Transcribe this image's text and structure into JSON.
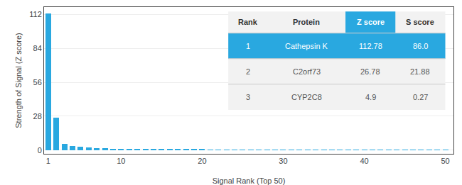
{
  "chart_data": {
    "type": "bar",
    "x": [
      1,
      2,
      3,
      4,
      5,
      6,
      7,
      8,
      9,
      10,
      11,
      12,
      13,
      14,
      15,
      16,
      17,
      18,
      19,
      20,
      21,
      22,
      23,
      24,
      25,
      26,
      27,
      28,
      29,
      30,
      31,
      32,
      33,
      34,
      35,
      36,
      37,
      38,
      39,
      40,
      41,
      42,
      43,
      44,
      45,
      46,
      47,
      48,
      49,
      50
    ],
    "values": [
      112.78,
      26.78,
      4.9,
      3.5,
      2.8,
      2.2,
      1.8,
      1.5,
      1.3,
      1.1,
      1.0,
      0.9,
      0.85,
      0.8,
      0.75,
      0.7,
      0.65,
      0.6,
      0.57,
      0.54,
      0.51,
      0.49,
      0.47,
      0.45,
      0.43,
      0.41,
      0.4,
      0.38,
      0.37,
      0.35,
      0.34,
      0.33,
      0.32,
      0.31,
      0.3,
      0.29,
      0.28,
      0.27,
      0.26,
      0.25,
      0.24,
      0.23,
      0.22,
      0.21,
      0.2,
      0.19,
      0.18,
      0.17,
      0.16,
      0.15
    ],
    "color": "#29a8e0",
    "xlabel": "Signal Rank (Top 50)",
    "ylabel": "Strength of Signal (Z score)",
    "xlim": [
      0.5,
      51
    ],
    "xticks": [
      1,
      10,
      20,
      30,
      40,
      50
    ],
    "ylim": [
      -3,
      118
    ],
    "yticks": [
      0,
      28,
      56,
      84,
      112
    ],
    "grid": true,
    "table": {
      "headers": [
        "Rank",
        "Protein",
        "Z score",
        "S score"
      ],
      "rows": [
        [
          "1",
          "Cathepsin K",
          "112.78",
          "86.0"
        ],
        [
          "2",
          "C2orf73",
          "26.78",
          "21.88"
        ],
        [
          "3",
          "CYP2C8",
          "4.9",
          "0.27"
        ]
      ]
    }
  }
}
